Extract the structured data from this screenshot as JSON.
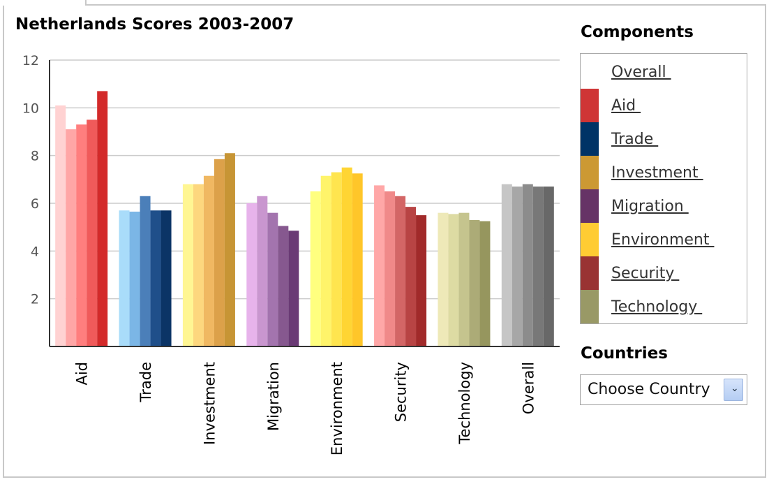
{
  "chart_data": {
    "type": "bar",
    "title": "Netherlands Scores 2003-2007",
    "categories": [
      "Aid",
      "Trade",
      "Investment",
      "Migration",
      "Environment",
      "Security",
      "Technology",
      "Overall"
    ],
    "ylim": [
      0,
      12
    ],
    "yticks": [
      "2",
      "4",
      "6",
      "8",
      "10",
      "12"
    ],
    "grid": true,
    "values": [
      [
        10.1,
        9.1,
        9.3,
        9.5,
        10.7
      ],
      [
        5.7,
        5.65,
        6.3,
        5.7,
        5.7
      ],
      [
        6.8,
        6.8,
        7.15,
        7.85,
        8.1
      ],
      [
        6.0,
        6.3,
        5.6,
        5.05,
        4.85
      ],
      [
        6.5,
        7.15,
        7.3,
        7.5,
        7.25
      ],
      [
        6.75,
        6.5,
        6.3,
        5.85,
        5.5
      ],
      [
        5.6,
        5.55,
        5.6,
        5.3,
        5.25
      ],
      [
        6.8,
        6.7,
        6.8,
        6.7,
        6.7
      ]
    ],
    "colors": [
      [
        "#ffd2d2",
        "#ffa6a6",
        "#ff7e7e",
        "#f05a5a",
        "#d32a2a"
      ],
      [
        "#a9dcfa",
        "#7bb6e6",
        "#4b7fb9",
        "#1f4f8a",
        "#0b3466"
      ],
      [
        "#fff693",
        "#fdd77e",
        "#f0b862",
        "#dca14a",
        "#c79535"
      ],
      [
        "#e7b3eb",
        "#c996cf",
        "#a374ae",
        "#86588f",
        "#6a3a75"
      ],
      [
        "#ffff7f",
        "#fff46a",
        "#ffe54f",
        "#ffd533",
        "#ffc629"
      ],
      [
        "#ffa7a7",
        "#f08989",
        "#d36666",
        "#b84444",
        "#a12a2a"
      ],
      [
        "#eee9b8",
        "#dddba3",
        "#c5c48e",
        "#acab77",
        "#96965e"
      ],
      [
        "#c6c6c6",
        "#a7a7a7",
        "#8c8c8c",
        "#787878",
        "#686868"
      ]
    ]
  },
  "legend": {
    "title": "Components",
    "items": [
      {
        "label": "Overall ",
        "color": "#ffffff"
      },
      {
        "label": "Aid ",
        "color": "#cf3536"
      },
      {
        "label": "Trade ",
        "color": "#003366"
      },
      {
        "label": "Investment ",
        "color": "#cc9933"
      },
      {
        "label": "Migration ",
        "color": "#663366"
      },
      {
        "label": "Environment ",
        "color": "#ffcc33"
      },
      {
        "label": "Security ",
        "color": "#993333"
      },
      {
        "label": "Technology ",
        "color": "#999966"
      }
    ]
  },
  "countries": {
    "title": "Countries",
    "select_label": "Choose Country"
  }
}
